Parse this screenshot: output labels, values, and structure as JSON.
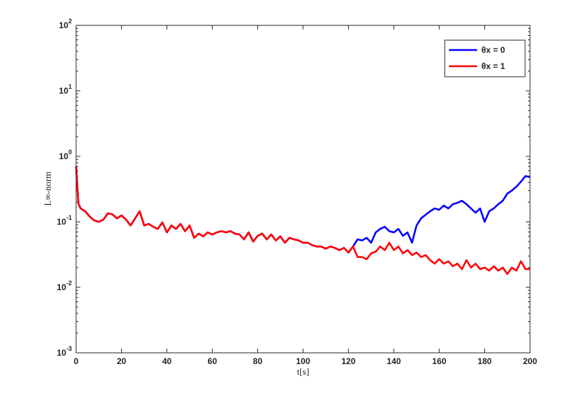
{
  "chart_data": {
    "type": "line",
    "x_label": "t[s]",
    "y_label": "L∞-norm",
    "x": [
      0,
      1,
      2,
      4,
      6,
      8,
      10,
      12,
      14,
      16,
      18,
      20,
      22,
      24,
      26,
      28,
      30,
      32,
      34,
      36,
      38,
      40,
      42,
      44,
      46,
      48,
      50,
      52,
      54,
      56,
      58,
      60,
      62,
      64,
      66,
      68,
      70,
      72,
      74,
      76,
      78,
      80,
      82,
      84,
      86,
      88,
      90,
      92,
      94,
      96,
      98,
      100,
      102,
      104,
      106,
      108,
      110,
      112,
      114,
      116,
      118,
      120,
      122,
      124,
      126,
      128,
      130,
      132,
      134,
      136,
      138,
      140,
      142,
      144,
      146,
      148,
      150,
      152,
      154,
      156,
      158,
      160,
      162,
      164,
      166,
      168,
      170,
      172,
      174,
      176,
      178,
      180,
      182,
      184,
      186,
      188,
      190,
      192,
      194,
      196,
      198,
      200
    ],
    "series": [
      {
        "name": "θx = 0",
        "color": "#0000ff",
        "values": [
          0.7,
          0.19,
          0.16,
          0.145,
          0.12,
          0.105,
          0.1,
          0.108,
          0.135,
          0.13,
          0.113,
          0.125,
          0.108,
          0.088,
          0.113,
          0.145,
          0.088,
          0.093,
          0.084,
          0.078,
          0.098,
          0.069,
          0.088,
          0.078,
          0.093,
          0.072,
          0.088,
          0.057,
          0.066,
          0.06,
          0.069,
          0.064,
          0.069,
          0.072,
          0.069,
          0.072,
          0.066,
          0.064,
          0.054,
          0.069,
          0.05,
          0.061,
          0.066,
          0.054,
          0.064,
          0.052,
          0.06,
          0.048,
          0.057,
          0.054,
          0.052,
          0.048,
          0.048,
          0.044,
          0.042,
          0.042,
          0.039,
          0.042,
          0.04,
          0.037,
          0.04,
          0.034,
          0.042,
          0.054,
          0.052,
          0.057,
          0.048,
          0.069,
          0.078,
          0.084,
          0.072,
          0.069,
          0.078,
          0.061,
          0.069,
          0.048,
          0.088,
          0.113,
          0.128,
          0.145,
          0.16,
          0.153,
          0.177,
          0.16,
          0.186,
          0.195,
          0.21,
          0.186,
          0.16,
          0.138,
          0.16,
          0.1,
          0.145,
          0.16,
          0.186,
          0.21,
          0.27,
          0.3,
          0.345,
          0.41,
          0.5,
          0.48
        ]
      },
      {
        "name": "θx = 1",
        "color": "#ff0000",
        "values": [
          0.7,
          0.19,
          0.16,
          0.145,
          0.12,
          0.105,
          0.1,
          0.108,
          0.135,
          0.13,
          0.113,
          0.125,
          0.108,
          0.088,
          0.113,
          0.145,
          0.088,
          0.093,
          0.084,
          0.078,
          0.098,
          0.069,
          0.088,
          0.078,
          0.093,
          0.072,
          0.088,
          0.057,
          0.066,
          0.06,
          0.069,
          0.064,
          0.069,
          0.072,
          0.069,
          0.072,
          0.066,
          0.064,
          0.054,
          0.069,
          0.05,
          0.061,
          0.066,
          0.054,
          0.064,
          0.052,
          0.06,
          0.048,
          0.057,
          0.054,
          0.052,
          0.048,
          0.048,
          0.044,
          0.042,
          0.042,
          0.039,
          0.042,
          0.04,
          0.037,
          0.04,
          0.034,
          0.042,
          0.029,
          0.029,
          0.027,
          0.033,
          0.035,
          0.042,
          0.037,
          0.048,
          0.037,
          0.042,
          0.033,
          0.037,
          0.031,
          0.034,
          0.029,
          0.031,
          0.026,
          0.023,
          0.027,
          0.023,
          0.025,
          0.021,
          0.023,
          0.019,
          0.026,
          0.02,
          0.023,
          0.019,
          0.02,
          0.018,
          0.021,
          0.018,
          0.02,
          0.016,
          0.02,
          0.018,
          0.025,
          0.019,
          0.019
        ]
      }
    ],
    "xlim": [
      0,
      200
    ],
    "xticks": [
      0,
      20,
      40,
      60,
      80,
      100,
      120,
      140,
      160,
      180,
      200
    ],
    "ylim": [
      0.001,
      100
    ],
    "yscale": "log",
    "yticks": [
      {
        "value": 0.001,
        "label": "10",
        "exponent": "-3"
      },
      {
        "value": 0.01,
        "label": "10",
        "exponent": "-2"
      },
      {
        "value": 0.1,
        "label": "10",
        "exponent": "-1"
      },
      {
        "value": 1,
        "label": "10",
        "exponent": "0"
      },
      {
        "value": 10,
        "label": "10",
        "exponent": "1"
      },
      {
        "value": 100,
        "label": "10",
        "exponent": "2"
      }
    ],
    "legend": "top-right",
    "grid": false
  }
}
